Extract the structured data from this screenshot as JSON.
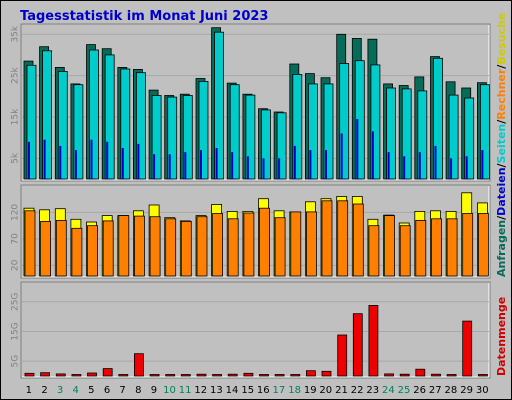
{
  "chart_data": {
    "type": "bar",
    "title": "Tagesstatistik im Monat Juni 2023",
    "categories": [
      "1",
      "2",
      "3",
      "4",
      "5",
      "6",
      "7",
      "8",
      "9",
      "10",
      "11",
      "12",
      "13",
      "14",
      "15",
      "16",
      "17",
      "18",
      "19",
      "20",
      "21",
      "22",
      "23",
      "24",
      "25",
      "26",
      "27",
      "28",
      "29",
      "30"
    ],
    "weekend_days": [
      "3",
      "4",
      "10",
      "11",
      "17",
      "18",
      "24",
      "25"
    ],
    "right_label_parts": [
      {
        "text": "Anfragen",
        "color": "#066b58"
      },
      {
        "text": "/",
        "color": "#000000"
      },
      {
        "text": "Dateien",
        "color": "#0000cc"
      },
      {
        "text": "/",
        "color": "#000000"
      },
      {
        "text": "Seiten",
        "color": "#00cccc"
      },
      {
        "text": "/",
        "color": "#000000"
      },
      {
        "text": "Rechner",
        "color": "#ff8000"
      },
      {
        "text": "/",
        "color": "#000000"
      },
      {
        "text": "Besuche",
        "color": "#cccc00"
      }
    ],
    "right_label_bottom": {
      "text": "Datenmenge",
      "color": "#cc0000"
    },
    "panels": [
      {
        "id": "top",
        "ylim": [
          0,
          37000
        ],
        "ticks": [
          {
            "v": 5000,
            "label": "5k"
          },
          {
            "v": 15000,
            "label": "15k"
          },
          {
            "v": 25000,
            "label": "25k"
          },
          {
            "v": 35000,
            "label": "35k"
          }
        ],
        "series": [
          {
            "name": "Anfragen",
            "color": "#066b58",
            "values": [
              28500,
              32000,
              27000,
              23000,
              32500,
              31500,
              27000,
              26500,
              21500,
              20200,
              20500,
              24300,
              36600,
              23200,
              20500,
              17000,
              16200,
              27800,
              25500,
              24500,
              35000,
              34000,
              33800,
              23000,
              22600,
              24700,
              29600,
              23500,
              22000,
              23300
            ]
          },
          {
            "name": "Seiten",
            "color": "#00cccc",
            "values": [
              27500,
              31000,
              26000,
              22800,
              31200,
              30000,
              26600,
              25700,
              20200,
              19800,
              20200,
              23600,
              35500,
              22800,
              20300,
              16700,
              16000,
              25300,
              23000,
              23000,
              27900,
              28600,
              27600,
              22000,
              21800,
              21300,
              29200,
              20300,
              19600,
              22800
            ]
          },
          {
            "name": "Dateien",
            "color": "#0000cc",
            "values": [
              9000,
              9500,
              8000,
              7000,
              9500,
              9000,
              7500,
              8500,
              6000,
              6000,
              6500,
              7000,
              7500,
              6500,
              5500,
              5000,
              5000,
              8000,
              7000,
              7000,
              11000,
              14500,
              11500,
              6500,
              5500,
              6500,
              8000,
              5000,
              5500,
              7000
            ]
          }
        ]
      },
      {
        "id": "middle",
        "ylim": [
          0,
          168
        ],
        "ticks": [
          {
            "v": 20,
            "label": "20"
          },
          {
            "v": 70,
            "label": "70"
          },
          {
            "v": 120,
            "label": "120"
          }
        ],
        "series": [
          {
            "name": "Besuche",
            "color": "#ffff00",
            "values": [
              128,
              125,
              127,
              107,
              102,
              114,
              114,
              123,
              134,
              110,
              104,
              114,
              135,
              122,
              122,
              146,
              123,
              121,
              140,
              146,
              150,
              150,
              107,
              115,
              100,
              122,
              123,
              122,
              157,
              138
            ]
          },
          {
            "name": "Rechner",
            "color": "#ff8000",
            "values": [
              123,
              103,
              105,
              90,
              95,
              104,
              114,
              113,
              112,
              108,
              103,
              112,
              118,
              108,
              119,
              128,
              110,
              121,
              121,
              142,
              142,
              136,
              95,
              114,
              95,
              105,
              108,
              108,
              118,
              118
            ]
          }
        ]
      },
      {
        "id": "bottom",
        "ylim": [
          0,
          31000
        ],
        "ticks": [
          {
            "v": 5000,
            "label": "5G"
          },
          {
            "v": 15000,
            "label": "15G"
          },
          {
            "v": 25000,
            "label": "25G"
          }
        ],
        "series": [
          {
            "name": "Datenmenge",
            "color": "#ee0000",
            "values": [
              900,
              1100,
              700,
              500,
              1000,
              2500,
              500,
              7500,
              500,
              500,
              500,
              600,
              500,
              600,
              900,
              500,
              500,
              500,
              1800,
              1600,
              13800,
              21000,
              23800,
              700,
              600,
              2300,
              600,
              500,
              18500,
              500
            ]
          }
        ]
      }
    ]
  }
}
